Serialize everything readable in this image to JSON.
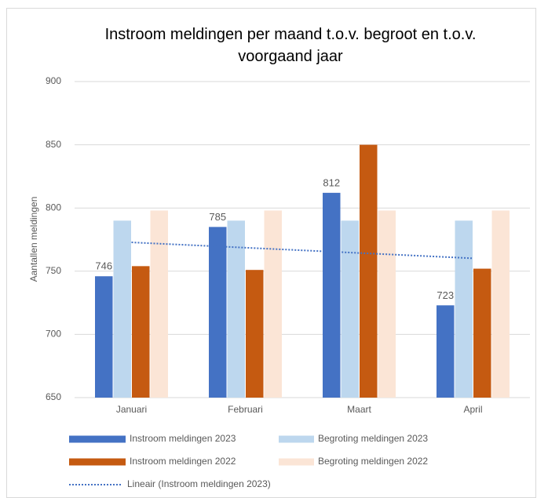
{
  "chart_data": {
    "type": "bar",
    "title": "Instroom meldingen per maand t.o.v. begroot en t.o.v. voorgaand jaar",
    "y_label": "Aantallen meldingen",
    "categories": [
      "Januari",
      "Februari",
      "Maart",
      "April"
    ],
    "series": [
      {
        "name": "Instroom meldingen 2023",
        "color": "#4472c4",
        "values": [
          746,
          785,
          812,
          723
        ],
        "data_labels": true
      },
      {
        "name": "Begroting meldingen 2023",
        "color": "#bdd7ee",
        "values": [
          790,
          790,
          790,
          790
        ]
      },
      {
        "name": "Instroom meldingen 2022",
        "color": "#c55a11",
        "values": [
          754,
          751,
          850,
          752
        ]
      },
      {
        "name": "Begroting meldingen 2022",
        "color": "#fbe5d6",
        "values": [
          798,
          798,
          798,
          798
        ]
      },
      {
        "name": "Lineair (Instroom meldingen 2023)",
        "color": "#4472c4",
        "type": "trendline",
        "values": [
          772.8,
          768.6,
          764.4,
          760.2
        ]
      }
    ],
    "ylim": [
      650,
      900
    ],
    "yticks": [
      650,
      700,
      750,
      800,
      850,
      900
    ],
    "grid": true,
    "legend": "bottom"
  }
}
